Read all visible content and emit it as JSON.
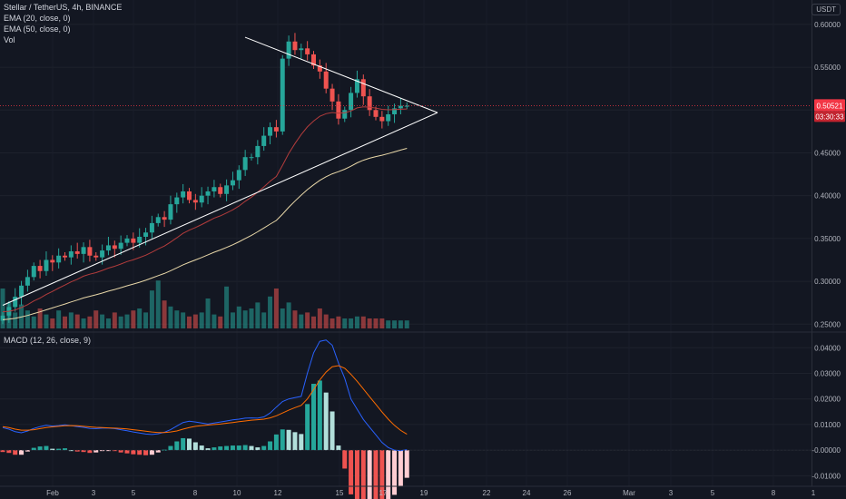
{
  "header": {
    "symbol_line": "Stellar / TetherUS, 4h, BINANCE",
    "ema20_label": "EMA (20, close, 0)",
    "ema50_label": "EMA (50, close, 0)",
    "vol_label": "Vol",
    "unit": "USDT"
  },
  "macd_panel": {
    "label": "MACD (12, 26, close, 9)"
  },
  "price_axis": {
    "ticks": [
      "0.60000",
      "0.55000",
      "0.50000",
      "0.45000",
      "0.40000",
      "0.35000",
      "0.30000",
      "0.25000"
    ],
    "last_price": "0.50521",
    "countdown": "03:30:33"
  },
  "macd_axis": {
    "ticks": [
      "0.04000",
      "0.03000",
      "0.02000",
      "0.01000",
      "-0.00000",
      "-0.01000"
    ]
  },
  "time_axis": {
    "labels": [
      "Feb",
      "3",
      "5",
      "8",
      "10",
      "12",
      "15",
      "17",
      "19",
      "22",
      "24",
      "26",
      "Mar",
      "3",
      "5",
      "8",
      "1"
    ]
  },
  "colors": {
    "background": "#131722",
    "up": "#26a69a",
    "down": "#ef5350",
    "ema20": "#b33c3c",
    "ema50": "#e8d7a8",
    "macd_line": "#2962ff",
    "signal_line": "#ff6d00",
    "trendline": "#ffffff",
    "last_price": "#f23645"
  },
  "chart_data": [
    {
      "type": "candlestick",
      "title": "Stellar / TetherUS, 4h, BINANCE",
      "ylim": [
        0.245,
        0.62
      ],
      "x_start": "Jan 31",
      "x_end": "Feb 18",
      "ohlc_series": {
        "name": "XLMUSDT",
        "description": "approximate close trajectory read from chart (one value per candle)",
        "closes": [
          0.26,
          0.27,
          0.282,
          0.295,
          0.305,
          0.318,
          0.312,
          0.325,
          0.322,
          0.33,
          0.328,
          0.335,
          0.332,
          0.34,
          0.33,
          0.328,
          0.336,
          0.342,
          0.338,
          0.345,
          0.35,
          0.345,
          0.352,
          0.357,
          0.368,
          0.375,
          0.372,
          0.39,
          0.398,
          0.405,
          0.395,
          0.392,
          0.4,
          0.405,
          0.41,
          0.402,
          0.412,
          0.418,
          0.43,
          0.445,
          0.445,
          0.458,
          0.47,
          0.48,
          0.475,
          0.56,
          0.58,
          0.57,
          0.572,
          0.565,
          0.552,
          0.545,
          0.525,
          0.51,
          0.49,
          0.5,
          0.52,
          0.536,
          0.516,
          0.5,
          0.492,
          0.487,
          0.495,
          0.502,
          0.505,
          0.505
        ]
      },
      "ema20": {
        "name": "EMA (20, close, 0)",
        "start": 0.265,
        "end": 0.502
      },
      "ema50": {
        "name": "EMA (50, close, 0)",
        "start": 0.255,
        "end": 0.488
      },
      "last_price": 0.50521,
      "annotations": [
        "symmetrical triangle: upper line 0.585 -> apex 0.497",
        "rising support line 0.27 -> apex 0.497"
      ]
    },
    {
      "type": "bar",
      "title": "Vol",
      "description": "volume histogram at bottom of price pane (relative heights)",
      "values": [
        2.0,
        1.3,
        0.8,
        1.2,
        0.9,
        0.6,
        1.0,
        0.7,
        0.5,
        0.9,
        0.6,
        0.8,
        0.7,
        0.5,
        0.6,
        0.9,
        0.7,
        0.5,
        0.8,
        0.6,
        0.7,
        0.9,
        1.0,
        0.8,
        1.9,
        2.4,
        1.4,
        1.1,
        0.9,
        0.8,
        0.6,
        0.7,
        0.8,
        1.5,
        0.7,
        0.6,
        2.1,
        0.8,
        1.1,
        0.9,
        1.0,
        1.3,
        0.8,
        1.6,
        2.0,
        1.0,
        1.3,
        0.9,
        0.7,
        0.8,
        0.6,
        1.0,
        0.7,
        0.5,
        0.6,
        0.5,
        0.5,
        0.6,
        0.6,
        0.5,
        0.5,
        0.5,
        0.4,
        0.4,
        0.4,
        0.4
      ]
    },
    {
      "type": "line",
      "title": "MACD (12, 26, close, 9)",
      "ylim": [
        -0.012,
        0.044
      ],
      "series": [
        {
          "name": "MACD",
          "values": [
            0.0088,
            0.0082,
            0.0072,
            0.0068,
            0.0075,
            0.0085,
            0.0092,
            0.0097,
            0.0094,
            0.0096,
            0.0099,
            0.0096,
            0.0092,
            0.0089,
            0.0085,
            0.0084,
            0.0086,
            0.0086,
            0.0084,
            0.008,
            0.0076,
            0.0071,
            0.0067,
            0.0063,
            0.0061,
            0.0064,
            0.007,
            0.008,
            0.0094,
            0.0108,
            0.0113,
            0.011,
            0.0106,
            0.0102,
            0.0106,
            0.011,
            0.0114,
            0.0118,
            0.0121,
            0.0125,
            0.0126,
            0.0125,
            0.013,
            0.0145,
            0.0168,
            0.019,
            0.02,
            0.0205,
            0.021,
            0.03,
            0.038,
            0.0425,
            0.043,
            0.041,
            0.034,
            0.028,
            0.02,
            0.016,
            0.012,
            0.009,
            0.006,
            0.003,
            0.001,
            0.0,
            -0.0002,
            0.0002
          ]
        },
        {
          "name": "Signal",
          "values": [
            0.0092,
            0.0088,
            0.0082,
            0.0078,
            0.0078,
            0.008,
            0.0084,
            0.0088,
            0.0091,
            0.0093,
            0.0095,
            0.0096,
            0.0095,
            0.0093,
            0.0091,
            0.0089,
            0.0088,
            0.0087,
            0.0086,
            0.0085,
            0.0083,
            0.008,
            0.0077,
            0.0074,
            0.0071,
            0.0069,
            0.0069,
            0.0071,
            0.0075,
            0.0082,
            0.0088,
            0.0093,
            0.0096,
            0.0098,
            0.01,
            0.0102,
            0.0105,
            0.0108,
            0.0111,
            0.0114,
            0.0117,
            0.0119,
            0.0121,
            0.0126,
            0.0134,
            0.0145,
            0.0156,
            0.0166,
            0.0175,
            0.02,
            0.0236,
            0.0274,
            0.0305,
            0.0326,
            0.033,
            0.032,
            0.0296,
            0.0269,
            0.0239,
            0.0209,
            0.0179,
            0.0149,
            0.0121,
            0.0097,
            0.0077,
            0.0062
          ]
        }
      ],
      "histogram": "MACD minus Signal"
    }
  ]
}
